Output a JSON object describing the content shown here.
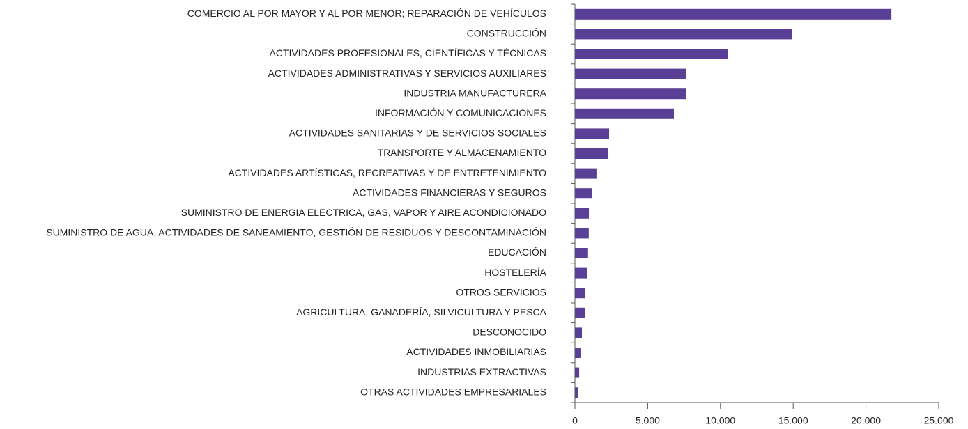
{
  "chart_data": {
    "type": "barh",
    "color": "#5a3f96",
    "grid": false,
    "categories": [
      "COMERCIO AL POR MAYOR Y AL POR MENOR; REPARACIÓN DE VEHÍCULOS",
      "CONSTRUCCIÓN",
      "ACTIVIDADES PROFESIONALES, CIENTÍFICAS Y TÉCNICAS",
      "ACTIVIDADES ADMINISTRATIVAS Y SERVICIOS AUXILIARES",
      "INDUSTRIA MANUFACTURERA",
      "INFORMACIÓN Y COMUNICACIONES",
      "ACTIVIDADES SANITARIAS Y DE SERVICIOS SOCIALES",
      "TRANSPORTE Y ALMACENAMIENTO",
      "ACTIVIDADES ARTÍSTICAS, RECREATIVAS Y DE ENTRETENIMIENTO",
      "ACTIVIDADES FINANCIERAS Y SEGUROS",
      "SUMINISTRO DE ENERGIA ELECTRICA, GAS, VAPOR Y AIRE ACONDICIONADO",
      "SUMINISTRO DE AGUA, ACTIVIDADES DE SANEAMIENTO, GESTIÓN DE RESIDUOS Y DESCONTAMINACIÓN",
      "EDUCACIÓN",
      "HOSTELERÍA",
      "OTROS SERVICIOS",
      "AGRICULTURA, GANADERÍA, SILVICULTURA Y PESCA",
      "DESCONOCIDO",
      "ACTIVIDADES INMOBILIARIAS",
      "INDUSTRIAS EXTRACTIVAS",
      "OTRAS ACTIVIDADES EMPRESARIALES"
    ],
    "values": [
      21750,
      14900,
      10500,
      7660,
      7620,
      6800,
      2350,
      2300,
      1480,
      1150,
      960,
      950,
      900,
      860,
      720,
      670,
      480,
      380,
      290,
      190
    ],
    "xlim": [
      0,
      25000
    ],
    "xticks": [
      0,
      {
        "value": 5000,
        "label": "5.000"
      },
      {
        "value": 10000,
        "label": "10.000"
      },
      {
        "value": 15000,
        "label": "15.000"
      },
      {
        "value": 20000,
        "label": "20.000"
      },
      {
        "value": 25000,
        "label": "25.000"
      }
    ]
  }
}
